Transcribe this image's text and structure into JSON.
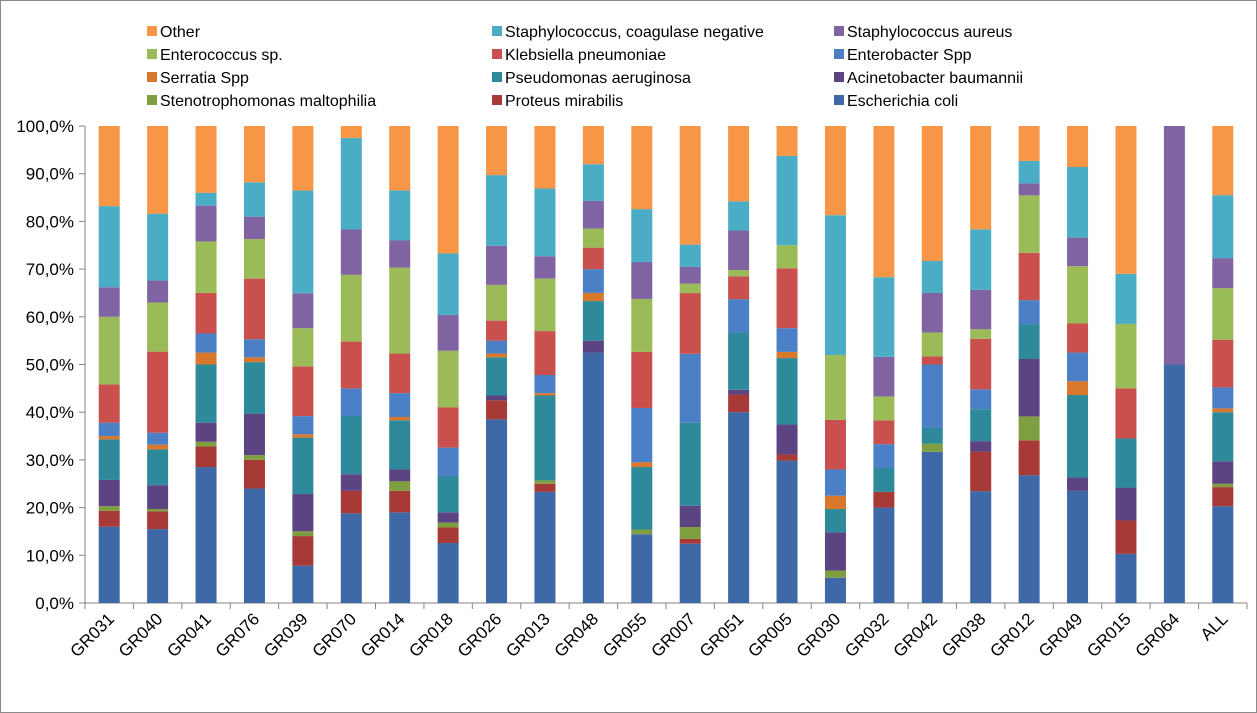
{
  "chart_data": {
    "type": "bar",
    "stacked": true,
    "percent_stacked": true,
    "title": "",
    "xlabel": "",
    "ylabel": "",
    "ylim": [
      0,
      100
    ],
    "y_ticks": [
      "0,0%",
      "10,0%",
      "20,0%",
      "30,0%",
      "40,0%",
      "50,0%",
      "60,0%",
      "70,0%",
      "80,0%",
      "90,0%",
      "100,0%"
    ],
    "grid": false,
    "legend_position": "top",
    "categories": [
      "GR031",
      "GR040",
      "GR041",
      "GR076",
      "GR039",
      "GR070",
      "GR014",
      "GR018",
      "GR026",
      "GR013",
      "GR048",
      "GR055",
      "GR007",
      "GR051",
      "GR005",
      "GR030",
      "GR032",
      "GR042",
      "GR038",
      "GR012",
      "GR049",
      "GR015",
      "GR064",
      "ALL"
    ],
    "series": [
      {
        "name": "Escherichia coli",
        "color": "#3f68a7",
        "values": [
          16,
          15.5,
          28.5,
          24,
          7.8,
          18.8,
          19,
          12.7,
          38.5,
          23.3,
          52.5,
          14.3,
          12.5,
          40,
          30,
          5.3,
          20,
          31.7,
          23.5,
          26.7,
          23.5,
          10.3,
          50,
          20.3
        ]
      },
      {
        "name": "Proteus mirabilis",
        "color": "#a73a37",
        "values": [
          3.3,
          3.7,
          4.3,
          6,
          6.2,
          4.7,
          4.5,
          3.3,
          4,
          1.7,
          0,
          0,
          1,
          3.7,
          1.3,
          0,
          3.3,
          0,
          8.3,
          7.3,
          0,
          7,
          0,
          4
        ]
      },
      {
        "name": "Stenotrophomonas maltophilia",
        "color": "#7f9e3f",
        "values": [
          1,
          0.5,
          1,
          1,
          1,
          0,
          2,
          1,
          0,
          0.7,
          0,
          1,
          2.5,
          0,
          0,
          1.5,
          0,
          1.7,
          0,
          5,
          0,
          0,
          0,
          0.7
        ]
      },
      {
        "name": "Acinetobacter baumannii",
        "color": "#5c4482",
        "values": [
          5.5,
          5,
          4,
          8.7,
          7.8,
          3.5,
          2.5,
          2.2,
          1,
          0,
          2.5,
          0,
          4.5,
          1,
          6.3,
          8,
          0,
          0,
          2.2,
          12,
          2.8,
          6.9,
          0,
          4.7
        ]
      },
      {
        "name": "Pseudomonas aeruginosa",
        "color": "#2e8a9a",
        "values": [
          8.5,
          7.5,
          12.2,
          10.8,
          11.8,
          12.2,
          10.3,
          7.7,
          8,
          17.8,
          8.3,
          13,
          17.5,
          12,
          14,
          4.9,
          5,
          3.3,
          6.7,
          7.3,
          17.3,
          10.3,
          0,
          10.3
        ]
      },
      {
        "name": "Serratia Spp",
        "color": "#d9782d",
        "values": [
          0.7,
          1,
          2.5,
          1,
          0.7,
          0,
          0.7,
          0,
          0.8,
          0.5,
          1.7,
          1,
          0,
          0,
          1.3,
          2.8,
          0,
          0,
          0,
          0,
          2.9,
          0,
          0,
          0.8
        ]
      },
      {
        "name": "Enterobacter Spp",
        "color": "#4b80c6",
        "values": [
          2.8,
          2.5,
          4,
          3.8,
          3.8,
          5.8,
          5,
          6,
          2.7,
          3.8,
          5,
          11.3,
          14.5,
          7,
          5,
          5.5,
          5,
          13.3,
          4.2,
          5,
          6,
          0,
          0,
          4.4
        ]
      },
      {
        "name": "Klebsiella pneumoniae",
        "color": "#c9504d",
        "values": [
          8,
          17,
          8.5,
          12.7,
          10.4,
          9.8,
          8.3,
          8.5,
          4.2,
          9.2,
          4.5,
          11.7,
          12.8,
          4.8,
          12.6,
          10.4,
          5,
          1.7,
          10.6,
          9.9,
          6.1,
          10.5,
          0,
          10
        ]
      },
      {
        "name": "Enterococcus sp.",
        "color": "#9bbb59",
        "values": [
          14.2,
          10.3,
          10.8,
          8.3,
          8,
          14,
          18,
          12,
          7.5,
          11,
          4,
          11,
          2,
          1.3,
          4.9,
          13.6,
          5,
          5,
          2,
          12,
          12,
          13.5,
          0,
          10.8
        ]
      },
      {
        "name": "Staphylococcus aureus",
        "color": "#8064a2",
        "values": [
          6.2,
          4.6,
          7.5,
          4.7,
          7.3,
          9.5,
          5.7,
          7.6,
          8.2,
          4.7,
          5.8,
          7.7,
          3.5,
          8.3,
          0,
          0,
          8.3,
          8.3,
          8.3,
          2.5,
          6,
          0,
          50,
          6.3
        ]
      },
      {
        "name": "Staphylococcus, coagulase negative",
        "color": "#4bacc6",
        "values": [
          17,
          14,
          2.7,
          7.2,
          21.5,
          19.2,
          10.5,
          13,
          14.8,
          14.2,
          7.7,
          11,
          4.7,
          6.1,
          18.8,
          29.3,
          16.7,
          6.7,
          12.7,
          4.7,
          14.8,
          10.5,
          0,
          13.2
        ]
      },
      {
        "name": "Other",
        "color": "#f79646",
        "values": [
          16.8,
          18.4,
          14,
          11.8,
          13.5,
          2.5,
          13.5,
          27,
          10.3,
          13.1,
          8,
          17.3,
          25,
          15.8,
          6.3,
          18.7,
          31.7,
          28.3,
          21.7,
          7.3,
          8.6,
          31,
          0,
          14.5
        ]
      }
    ]
  },
  "legend": {
    "columns": [
      [
        "Other",
        "Enterococcus sp.",
        "Serratia Spp",
        "Stenotrophomonas maltophilia"
      ],
      [
        "Staphylococcus, coagulase negative",
        "Klebsiella pneumoniae",
        "Pseudomonas aeruginosa",
        "Proteus mirabilis"
      ],
      [
        "Staphylococcus aureus",
        "Enterobacter Spp",
        "Acinetobacter baumannii",
        "Escherichia coli"
      ]
    ]
  }
}
